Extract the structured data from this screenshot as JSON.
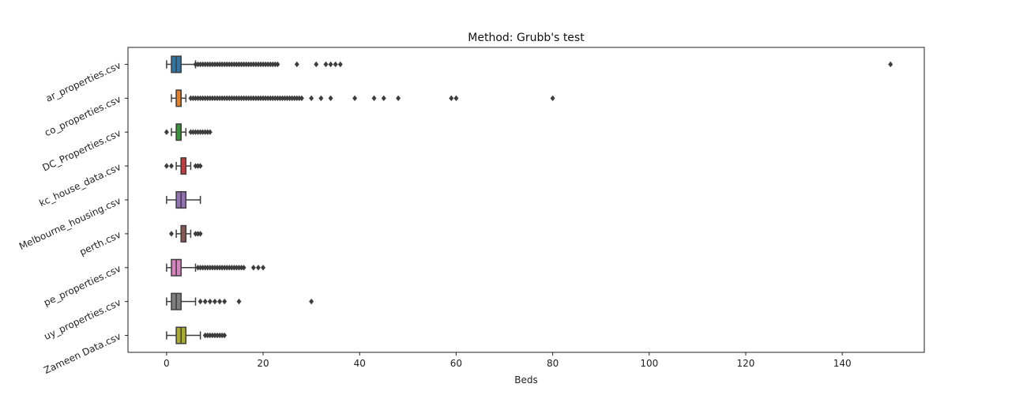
{
  "chart_data": {
    "type": "boxplot",
    "title": "Method: Grubb's test",
    "xlabel": "Beds",
    "ylabel": "",
    "xlim": [
      -8,
      157
    ],
    "xticks": [
      0,
      20,
      40,
      60,
      80,
      100,
      120,
      140
    ],
    "orientation": "horizontal",
    "grid": false,
    "categories": [
      "ar_properties.csv",
      "co_properties.csv",
      "DC_Properties.csv",
      "kc_house_data.csv",
      "Melbourne_housing.csv",
      "perth.csv",
      "pe_properties.csv",
      "uy_properties.csv",
      "Zameen Data.csv"
    ],
    "colors": [
      "#3274a1",
      "#e1812c",
      "#3a923a",
      "#c03d3e",
      "#9372b2",
      "#845b53",
      "#d684bd",
      "#7f7f7f",
      "#a9aa35"
    ],
    "boxes": [
      {
        "whislo": 0,
        "q1": 1,
        "med": 2,
        "q3": 3,
        "whishi": 6,
        "fliers": [
          6,
          6.5,
          7,
          7.5,
          8,
          8.5,
          9,
          9.5,
          10,
          10.5,
          11,
          11.5,
          12,
          12.5,
          13,
          13.5,
          14,
          14.5,
          15,
          15.5,
          16,
          16.5,
          17,
          17.5,
          18,
          18.5,
          19,
          19.5,
          20,
          20.5,
          21,
          21.5,
          22,
          22.5,
          23,
          27,
          31,
          33,
          34,
          35,
          36,
          150
        ]
      },
      {
        "whislo": 1,
        "q1": 2,
        "med": 3,
        "q3": 3,
        "whishi": 4,
        "fliers": [
          5,
          5.5,
          6,
          6.5,
          7,
          7.5,
          8,
          8.5,
          9,
          9.5,
          10,
          10.5,
          11,
          11.5,
          12,
          12.5,
          13,
          13.5,
          14,
          14.5,
          15,
          15.5,
          16,
          16.5,
          17,
          17.5,
          18,
          18.5,
          19,
          19.5,
          20,
          20.5,
          21,
          21.5,
          22,
          22.5,
          23,
          23.5,
          24,
          24.5,
          25,
          25.5,
          26,
          26.5,
          27,
          27.5,
          28,
          30,
          32,
          34,
          39,
          43,
          45,
          48,
          59,
          60,
          80
        ]
      },
      {
        "whislo": 1,
        "q1": 2,
        "med": 3,
        "q3": 3,
        "whishi": 4,
        "fliers": [
          0,
          5,
          5.5,
          6,
          6.5,
          7,
          7.5,
          8,
          8.5,
          9
        ]
      },
      {
        "whislo": 2,
        "q1": 3,
        "med": 3,
        "q3": 4,
        "whishi": 5,
        "fliers": [
          0,
          1,
          6,
          6.5,
          7
        ]
      },
      {
        "whislo": 0,
        "q1": 2,
        "med": 3,
        "q3": 4,
        "whishi": 7,
        "fliers": []
      },
      {
        "whislo": 2,
        "q1": 3,
        "med": 4,
        "q3": 4,
        "whishi": 5,
        "fliers": [
          1,
          6,
          6.5,
          7
        ]
      },
      {
        "whislo": 0,
        "q1": 1,
        "med": 2,
        "q3": 3,
        "whishi": 6,
        "fliers": [
          6.5,
          7,
          7.5,
          8,
          8.5,
          9,
          9.5,
          10,
          10.5,
          11,
          11.5,
          12,
          12.5,
          13,
          13.5,
          14,
          14.5,
          15,
          15.5,
          16,
          18,
          19,
          20
        ]
      },
      {
        "whislo": 0,
        "q1": 1,
        "med": 2,
        "q3": 3,
        "whishi": 6,
        "fliers": [
          7,
          8,
          9,
          10,
          11,
          12,
          15,
          30
        ]
      },
      {
        "whislo": 0,
        "q1": 2,
        "med": 3,
        "q3": 4,
        "whishi": 7,
        "fliers": [
          8,
          8.5,
          9,
          9.5,
          10,
          10.5,
          11,
          11.5,
          12
        ]
      }
    ]
  }
}
